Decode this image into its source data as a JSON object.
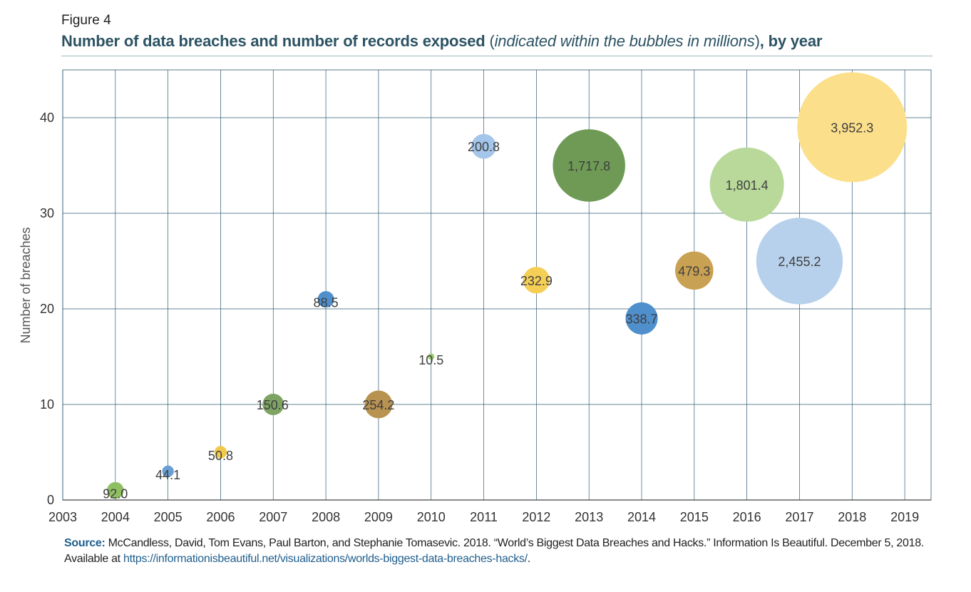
{
  "figure_label": "Figure 4",
  "title": {
    "bold_part": "Number of data breaches and number of records exposed",
    "italic_part": "indicated within the bubbles in millions",
    "open_paren": " (",
    "close_paren": ")",
    "tail": ", by year"
  },
  "source": {
    "label": "Source:",
    "text": " McCandless, David, Tom Evans, Paul Barton, and Stephanie Tomasevic. 2018. “World’s Biggest Data Breaches and Hacks.” Information Is Beautiful. December 5, 2018. Available at ",
    "link": "https://informationisbeautiful.net/visualizations/worlds-biggest-data-breaches-hacks/",
    "end": "."
  },
  "chart_data": {
    "type": "scatter",
    "subtype": "bubble",
    "title": "Number of data breaches and number of records exposed (indicated within the bubbles in millions), by year",
    "xlabel": "",
    "ylabel": "Number of breaches",
    "xlim": [
      2003,
      2019.5
    ],
    "ylim": [
      0,
      45
    ],
    "xticks": [
      2003,
      2004,
      2005,
      2006,
      2007,
      2008,
      2009,
      2010,
      2011,
      2012,
      2013,
      2014,
      2015,
      2016,
      2017,
      2018,
      2019
    ],
    "yticks": [
      0,
      10,
      20,
      30,
      40
    ],
    "grid": true,
    "points": [
      {
        "year": 2004,
        "breaches": 1,
        "records": 92.0,
        "label": "92.0",
        "color": "#8fbf63"
      },
      {
        "year": 2005,
        "breaches": 3,
        "records": 44.1,
        "label": "44.1",
        "color": "#6a9fd3"
      },
      {
        "year": 2006,
        "breaches": 5,
        "records": 50.8,
        "label": "50.8",
        "color": "#f2c94c"
      },
      {
        "year": 2007,
        "breaches": 10,
        "records": 150.6,
        "label": "150.6",
        "color": "#7ea463"
      },
      {
        "year": 2008,
        "breaches": 21,
        "records": 88.5,
        "label": "88.5",
        "color": "#4f8fcc"
      },
      {
        "year": 2009,
        "breaches": 10,
        "records": 254.2,
        "label": "254.2",
        "color": "#b89250"
      },
      {
        "year": 2010,
        "breaches": 15,
        "records": 10.5,
        "label": "10.5",
        "color": "#9acb6e"
      },
      {
        "year": 2011,
        "breaches": 37,
        "records": 200.8,
        "label": "200.8",
        "color": "#a3c6ea"
      },
      {
        "year": 2012,
        "breaches": 23,
        "records": 232.9,
        "label": "232.9",
        "color": "#f5cf55"
      },
      {
        "year": 2013,
        "breaches": 35,
        "records": 1717.8,
        "label": "1,717.8",
        "color": "#6e9a55"
      },
      {
        "year": 2014,
        "breaches": 19,
        "records": 338.7,
        "label": "338.7",
        "color": "#4f8fcc"
      },
      {
        "year": 2015,
        "breaches": 24,
        "records": 479.3,
        "label": "479.3",
        "color": "#c9a152"
      },
      {
        "year": 2016,
        "breaches": 33,
        "records": 1801.4,
        "label": "1,801.4",
        "color": "#b8d99a"
      },
      {
        "year": 2017,
        "breaches": 25,
        "records": 2455.2,
        "label": "2,455.2",
        "color": "#b7d1ec"
      },
      {
        "year": 2018,
        "breaches": 39,
        "records": 3952.3,
        "label": "3,952.3",
        "color": "#fbdf8a"
      }
    ]
  }
}
